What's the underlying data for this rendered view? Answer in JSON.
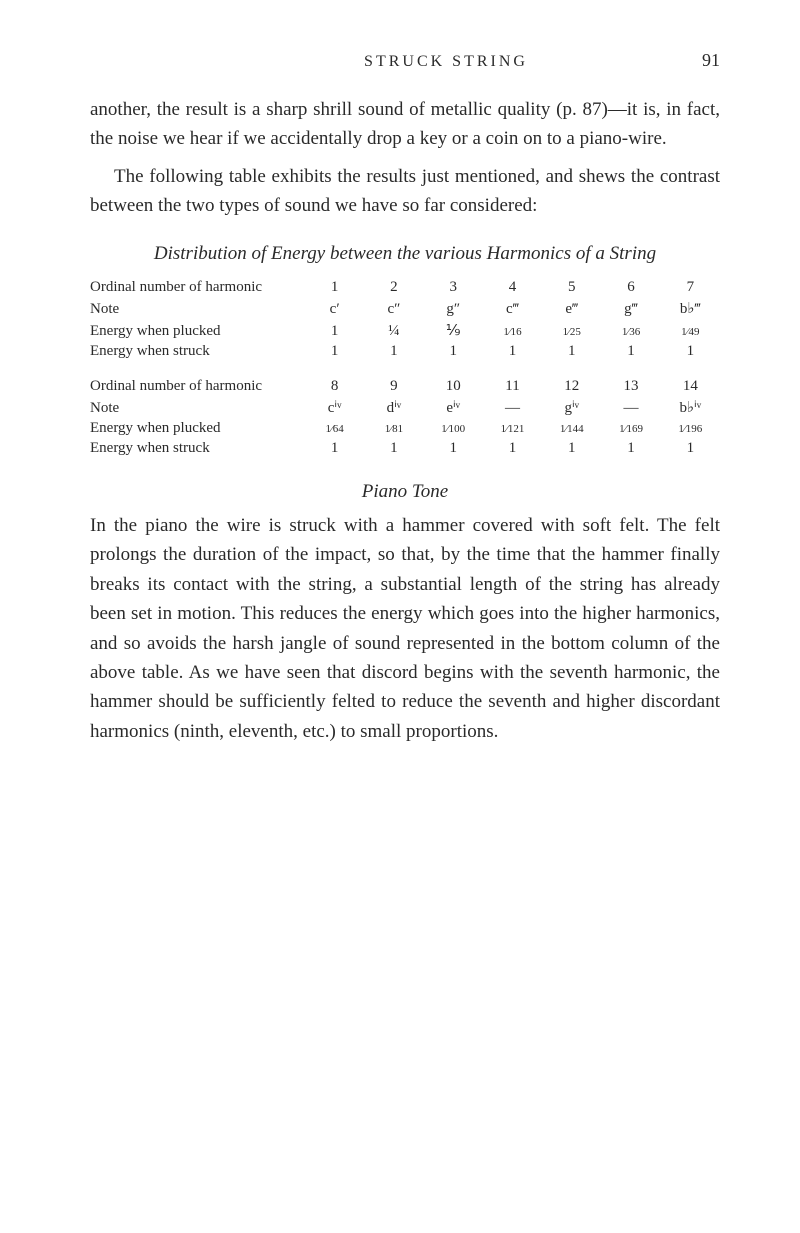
{
  "header": {
    "title": "STRUCK STRING",
    "page_number": "91"
  },
  "para1": "another, the result is a sharp shrill sound of metallic quality (p. 87)—it is, in fact, the noise we hear if we accidentally drop a key or a coin on to a piano-wire.",
  "para2": "The following table exhibits the results just mentioned, and shews the contrast between the two types of sound we have so far considered:",
  "section_title": "Distribution of Energy between the various Harmonics of a String",
  "table1": {
    "rows": [
      {
        "label": "Ordinal number of harmonic",
        "cells": [
          "1",
          "2",
          "3",
          "4",
          "5",
          "6",
          "7"
        ]
      },
      {
        "label": "Note",
        "cells": [
          "c′",
          "c″",
          "g″",
          "c‴",
          "e‴",
          "g‴",
          "b♭‴"
        ]
      },
      {
        "label": "Energy when plucked",
        "cells": [
          "1",
          "¼",
          "⅑",
          "1⁄16",
          "1⁄25",
          "1⁄36",
          "1⁄49"
        ]
      },
      {
        "label": "Energy when struck",
        "cells": [
          "1",
          "1",
          "1",
          "1",
          "1",
          "1",
          "1"
        ]
      }
    ]
  },
  "table2": {
    "rows": [
      {
        "label": "Ordinal number of harmonic",
        "cells": [
          "8",
          "9",
          "10",
          "11",
          "12",
          "13",
          "14"
        ]
      },
      {
        "label": "Note",
        "cells": [
          "cⁱᵛ",
          "dⁱᵛ",
          "eⁱᵛ",
          "—",
          "gⁱᵛ",
          "—",
          "b♭ⁱᵛ"
        ]
      },
      {
        "label": "Energy when plucked",
        "cells": [
          "1⁄64",
          "1⁄81",
          "1⁄100",
          "1⁄121",
          "1⁄144",
          "1⁄169",
          "1⁄196"
        ]
      },
      {
        "label": "Energy when struck",
        "cells": [
          "1",
          "1",
          "1",
          "1",
          "1",
          "1",
          "1"
        ]
      }
    ]
  },
  "subsection_title": "Piano Tone",
  "para3": "In the piano the wire is struck with a hammer covered with soft felt. The felt prolongs the duration of the impact, so that, by the time that the hammer finally breaks its contact with the string, a substantial length of the string has already been set in motion. This reduces the energy which goes into the higher harmonics, and so avoids the harsh jangle of sound represented in the bottom column of the above table. As we have seen that discord begins with the seventh harmonic, the hammer should be sufficiently felted to reduce the seventh and higher discordant harmonics (ninth, eleventh, etc.) to small proportions."
}
